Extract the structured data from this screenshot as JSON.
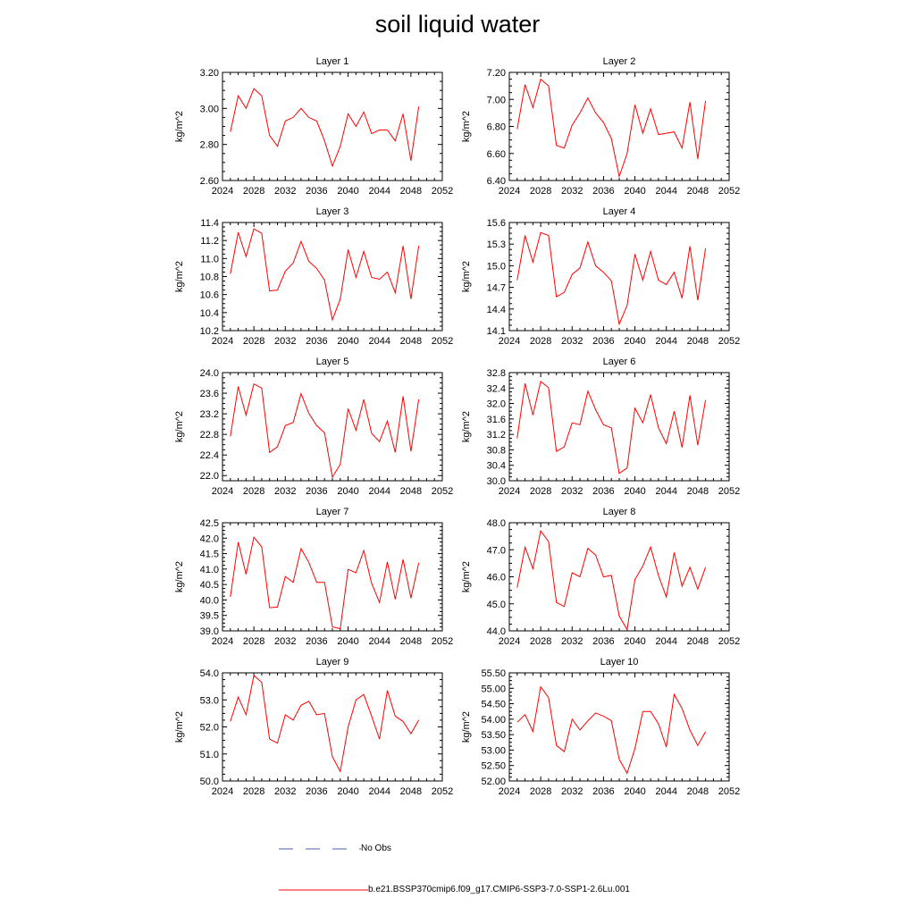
{
  "title": "soil liquid water",
  "legend": {
    "obs_label": "No Obs",
    "obs_color": "#4a5fb0",
    "model_label": "b.e21.BSSP370cmip6.f09_g17.CMIP6-SSP3-7.0-SSP1-2.6Lu.001",
    "model_color": "#ff0000"
  },
  "chart_data": [
    {
      "type": "line",
      "title": "Layer 1",
      "ylabel": "kg/m^2",
      "xlim": [
        2024,
        2052
      ],
      "xticks": [
        "2024",
        "2028",
        "2032",
        "2036",
        "2040",
        "2044",
        "2048",
        "2052"
      ],
      "ylim": [
        2.6,
        3.2
      ],
      "yticks": [
        "2.60",
        "2.80",
        "3.00",
        "3.20"
      ],
      "x": [
        2025,
        2026,
        2027,
        2028,
        2029,
        2030,
        2031,
        2032,
        2033,
        2034,
        2035,
        2036,
        2037,
        2038,
        2039,
        2040,
        2041,
        2042,
        2043,
        2044,
        2045,
        2046,
        2047,
        2048,
        2049
      ],
      "series": [
        {
          "values": [
            2.87,
            3.07,
            3.0,
            3.11,
            3.07,
            2.85,
            2.79,
            2.93,
            2.95,
            3.0,
            2.95,
            2.93,
            2.82,
            2.68,
            2.79,
            2.97,
            2.9,
            2.98,
            2.86,
            2.88,
            2.88,
            2.82,
            2.97,
            2.71,
            3.01
          ]
        }
      ]
    },
    {
      "type": "line",
      "title": "Layer 2",
      "ylabel": "kg/m^2",
      "xlim": [
        2024,
        2052
      ],
      "xticks": [
        "2024",
        "2028",
        "2032",
        "2036",
        "2040",
        "2044",
        "2048",
        "2052"
      ],
      "ylim": [
        6.4,
        7.2
      ],
      "yticks": [
        "6.40",
        "6.60",
        "6.80",
        "7.00",
        "7.20"
      ],
      "x": [
        2025,
        2026,
        2027,
        2028,
        2029,
        2030,
        2031,
        2032,
        2033,
        2034,
        2035,
        2036,
        2037,
        2038,
        2039,
        2040,
        2041,
        2042,
        2043,
        2044,
        2045,
        2046,
        2047,
        2048,
        2049
      ],
      "series": [
        {
          "values": [
            6.78,
            7.11,
            6.94,
            7.15,
            7.1,
            6.66,
            6.64,
            6.81,
            6.9,
            7.01,
            6.9,
            6.83,
            6.71,
            6.43,
            6.6,
            6.96,
            6.75,
            6.93,
            6.74,
            6.75,
            6.76,
            6.64,
            6.98,
            6.56,
            6.99
          ]
        }
      ]
    },
    {
      "type": "line",
      "title": "Layer 3",
      "ylabel": "kg/m^2",
      "xlim": [
        2024,
        2052
      ],
      "xticks": [
        "2024",
        "2028",
        "2032",
        "2036",
        "2040",
        "2044",
        "2048",
        "2052"
      ],
      "ylim": [
        10.2,
        11.4
      ],
      "yticks": [
        "10.2",
        "10.4",
        "10.6",
        "10.8",
        "11.0",
        "11.2",
        "11.4"
      ],
      "x": [
        2025,
        2026,
        2027,
        2028,
        2029,
        2030,
        2031,
        2032,
        2033,
        2034,
        2035,
        2036,
        2037,
        2038,
        2039,
        2040,
        2041,
        2042,
        2043,
        2044,
        2045,
        2046,
        2047,
        2048,
        2049
      ],
      "series": [
        {
          "values": [
            10.83,
            11.29,
            11.02,
            11.33,
            11.28,
            10.64,
            10.65,
            10.86,
            10.95,
            11.19,
            10.97,
            10.89,
            10.76,
            10.32,
            10.55,
            11.1,
            10.79,
            11.08,
            10.79,
            10.77,
            10.85,
            10.62,
            11.14,
            10.55,
            11.14
          ]
        }
      ]
    },
    {
      "type": "line",
      "title": "Layer 4",
      "ylabel": "kg/m^2",
      "xlim": [
        2024,
        2052
      ],
      "xticks": [
        "2024",
        "2028",
        "2032",
        "2036",
        "2040",
        "2044",
        "2048",
        "2052"
      ],
      "ylim": [
        14.1,
        15.6
      ],
      "yticks": [
        "14.1",
        "14.4",
        "14.7",
        "15.0",
        "15.3",
        "15.6"
      ],
      "x": [
        2025,
        2026,
        2027,
        2028,
        2029,
        2030,
        2031,
        2032,
        2033,
        2034,
        2035,
        2036,
        2037,
        2038,
        2039,
        2040,
        2041,
        2042,
        2043,
        2044,
        2045,
        2046,
        2047,
        2048,
        2049
      ],
      "series": [
        {
          "values": [
            14.8,
            15.42,
            15.05,
            15.46,
            15.42,
            14.57,
            14.63,
            14.88,
            14.97,
            15.33,
            15.0,
            14.91,
            14.79,
            14.19,
            14.45,
            15.16,
            14.8,
            15.2,
            14.8,
            14.74,
            14.91,
            14.55,
            15.27,
            14.52,
            15.24
          ]
        }
      ]
    },
    {
      "type": "line",
      "title": "Layer 5",
      "ylabel": "kg/m^2",
      "xlim": [
        2024,
        2052
      ],
      "xticks": [
        "2024",
        "2028",
        "2032",
        "2036",
        "2040",
        "2044",
        "2048",
        "2052"
      ],
      "ylim": [
        21.9,
        24.0
      ],
      "yticks": [
        "22.0",
        "22.4",
        "22.8",
        "23.2",
        "23.6",
        "24.0"
      ],
      "x": [
        2025,
        2026,
        2027,
        2028,
        2029,
        2030,
        2031,
        2032,
        2033,
        2034,
        2035,
        2036,
        2037,
        2038,
        2039,
        2040,
        2041,
        2042,
        2043,
        2044,
        2045,
        2046,
        2047,
        2048,
        2049
      ],
      "series": [
        {
          "values": [
            22.76,
            23.73,
            23.17,
            23.78,
            23.7,
            22.45,
            22.56,
            22.97,
            23.03,
            23.59,
            23.21,
            22.97,
            22.83,
            21.97,
            22.22,
            23.3,
            22.88,
            23.48,
            22.82,
            22.66,
            23.06,
            22.45,
            23.54,
            22.47,
            23.48
          ]
        }
      ]
    },
    {
      "type": "line",
      "title": "Layer 6",
      "ylabel": "kg/m^2",
      "xlim": [
        2024,
        2052
      ],
      "xticks": [
        "2024",
        "2028",
        "2032",
        "2036",
        "2040",
        "2044",
        "2048",
        "2052"
      ],
      "ylim": [
        30.0,
        32.8
      ],
      "yticks": [
        "30.0",
        "30.4",
        "30.8",
        "31.2",
        "31.6",
        "32.0",
        "32.4",
        "32.8"
      ],
      "x": [
        2025,
        2026,
        2027,
        2028,
        2029,
        2030,
        2031,
        2032,
        2033,
        2034,
        2035,
        2036,
        2037,
        2038,
        2039,
        2040,
        2041,
        2042,
        2043,
        2044,
        2045,
        2046,
        2047,
        2048,
        2049
      ],
      "series": [
        {
          "values": [
            31.1,
            32.52,
            31.7,
            32.57,
            32.41,
            30.76,
            30.88,
            31.5,
            31.45,
            32.32,
            31.84,
            31.45,
            31.37,
            30.19,
            30.33,
            31.88,
            31.5,
            32.23,
            31.37,
            30.96,
            31.8,
            30.86,
            32.21,
            30.92,
            32.09
          ]
        }
      ]
    },
    {
      "type": "line",
      "title": "Layer 7",
      "ylabel": "kg/m^2",
      "xlim": [
        2024,
        2052
      ],
      "xticks": [
        "2024",
        "2028",
        "2032",
        "2036",
        "2040",
        "2044",
        "2048",
        "2052"
      ],
      "ylim": [
        39.0,
        42.5
      ],
      "yticks": [
        "39.0",
        "39.5",
        "40.0",
        "40.5",
        "41.0",
        "41.5",
        "42.0",
        "42.5"
      ],
      "x": [
        2025,
        2026,
        2027,
        2028,
        2029,
        2030,
        2031,
        2032,
        2033,
        2034,
        2035,
        2036,
        2037,
        2038,
        2039,
        2040,
        2041,
        2042,
        2043,
        2044,
        2045,
        2046,
        2047,
        2048,
        2049
      ],
      "series": [
        {
          "values": [
            40.1,
            41.87,
            40.83,
            42.03,
            41.72,
            39.75,
            39.77,
            40.76,
            40.57,
            41.66,
            41.22,
            40.57,
            40.57,
            39.13,
            39.07,
            40.99,
            40.88,
            41.6,
            40.54,
            39.92,
            41.23,
            40.02,
            41.31,
            40.06,
            41.2
          ]
        }
      ]
    },
    {
      "type": "line",
      "title": "Layer 8",
      "ylabel": "kg/m^2",
      "xlim": [
        2024,
        2052
      ],
      "xticks": [
        "2024",
        "2028",
        "2032",
        "2036",
        "2040",
        "2044",
        "2048",
        "2052"
      ],
      "ylim": [
        44.0,
        48.0
      ],
      "yticks": [
        "44.0",
        "45.0",
        "46.0",
        "47.0",
        "48.0"
      ],
      "x": [
        2025,
        2026,
        2027,
        2028,
        2029,
        2030,
        2031,
        2032,
        2033,
        2034,
        2035,
        2036,
        2037,
        2038,
        2039,
        2040,
        2041,
        2042,
        2043,
        2044,
        2045,
        2046,
        2047,
        2048,
        2049
      ],
      "series": [
        {
          "values": [
            45.6,
            47.1,
            46.3,
            47.7,
            47.3,
            45.05,
            44.9,
            46.15,
            46.0,
            47.05,
            46.8,
            46.0,
            46.05,
            44.55,
            44.05,
            45.9,
            46.4,
            47.1,
            46.05,
            45.25,
            46.9,
            45.65,
            46.35,
            45.55,
            46.35
          ]
        }
      ]
    },
    {
      "type": "line",
      "title": "Layer 9",
      "ylabel": "kg/m^2",
      "xlim": [
        2024,
        2052
      ],
      "xticks": [
        "2024",
        "2028",
        "2032",
        "2036",
        "2040",
        "2044",
        "2048",
        "2052"
      ],
      "ylim": [
        50.0,
        54.0
      ],
      "yticks": [
        "50.0",
        "51.0",
        "52.0",
        "53.0",
        "54.0"
      ],
      "x": [
        2025,
        2026,
        2027,
        2028,
        2029,
        2030,
        2031,
        2032,
        2033,
        2034,
        2035,
        2036,
        2037,
        2038,
        2039,
        2040,
        2041,
        2042,
        2043,
        2044,
        2045,
        2046,
        2047,
        2048,
        2049
      ],
      "series": [
        {
          "values": [
            52.2,
            53.1,
            52.45,
            53.9,
            53.65,
            51.55,
            51.4,
            52.45,
            52.25,
            52.8,
            52.95,
            52.45,
            52.5,
            50.9,
            50.35,
            52.0,
            53.0,
            53.2,
            52.4,
            51.55,
            53.35,
            52.4,
            52.2,
            51.75,
            52.25
          ]
        }
      ]
    },
    {
      "type": "line",
      "title": "Layer 10",
      "ylabel": "kg/m^2",
      "xlim": [
        2024,
        2052
      ],
      "xticks": [
        "2024",
        "2028",
        "2032",
        "2036",
        "2040",
        "2044",
        "2048",
        "2052"
      ],
      "ylim": [
        52.0,
        55.5
      ],
      "yticks": [
        "52.00",
        "52.50",
        "53.00",
        "53.50",
        "54.00",
        "54.50",
        "55.00",
        "55.50"
      ],
      "x": [
        2025,
        2026,
        2027,
        2028,
        2029,
        2030,
        2031,
        2032,
        2033,
        2034,
        2035,
        2036,
        2037,
        2038,
        2039,
        2040,
        2041,
        2042,
        2043,
        2044,
        2045,
        2046,
        2047,
        2048,
        2049
      ],
      "series": [
        {
          "values": [
            53.9,
            54.15,
            53.6,
            55.05,
            54.7,
            53.15,
            52.95,
            54.0,
            53.65,
            53.95,
            54.2,
            54.1,
            53.95,
            52.7,
            52.25,
            53.05,
            54.25,
            54.25,
            53.85,
            53.1,
            54.8,
            54.35,
            53.65,
            53.15,
            53.6
          ]
        }
      ]
    }
  ]
}
